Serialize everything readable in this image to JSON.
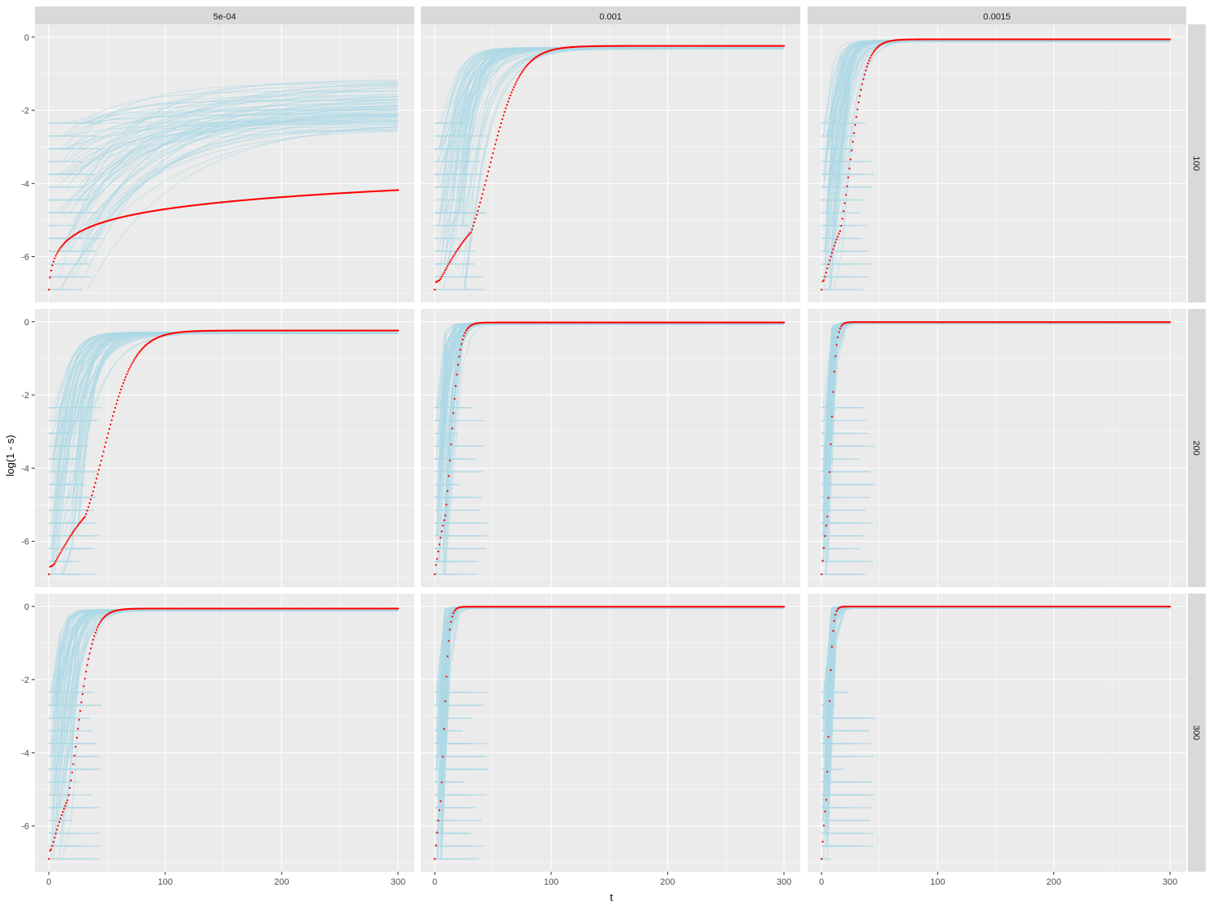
{
  "chart_data": {
    "type": "scatter",
    "facet_layout": "grid",
    "xlabel": "t",
    "ylabel": "log(1 - s)",
    "xlim": [
      -12,
      314
    ],
    "ylim": [
      -7.25,
      0.35
    ],
    "x_ticks": [
      0,
      100,
      200,
      300
    ],
    "x_tick_labels": [
      "0",
      "100",
      "200",
      "300"
    ],
    "y_ticks": [
      0,
      -2,
      -4,
      -6
    ],
    "y_tick_labels": [
      "0",
      "-2",
      "-4",
      "-6"
    ],
    "col_facets": [
      "5e-04",
      "0.001",
      "0.0015"
    ],
    "row_facets": [
      "100",
      "200",
      "300"
    ],
    "grid": true,
    "legend": "none",
    "colors": {
      "panel_bg": "#ebebeb",
      "strip_bg": "#d9d9d9",
      "gridline": "#ffffff",
      "simulated_points": "#add8e6",
      "mean_points": "#ff0000"
    },
    "series": [
      {
        "role": "simulated",
        "color": "#add8e6"
      },
      {
        "role": "mean",
        "color": "#ff0000"
      }
    ],
    "panels": [
      {
        "col": "5e-04",
        "row": "100",
        "mean_start": -6.9,
        "mean_end": -4.18,
        "mean_shape": "log",
        "rate": 0.0,
        "sim_plateau": -1.15,
        "sim_rise_start": 15,
        "sim_rise_end": 150
      },
      {
        "col": "0.001",
        "row": "100",
        "mean_start": -6.9,
        "mean_end": -0.24,
        "mean_shape": "logistic",
        "rate": 0.047,
        "sim_plateau": -0.28,
        "sim_rise_start": 5,
        "sim_rise_end": 90
      },
      {
        "col": "0.0015",
        "row": "100",
        "mean_start": -6.9,
        "mean_end": -0.06,
        "mean_shape": "logistic",
        "rate": 0.09,
        "sim_plateau": -0.08,
        "sim_rise_start": 4,
        "sim_rise_end": 55
      },
      {
        "col": "5e-04",
        "row": "200",
        "mean_start": -6.9,
        "mean_end": -0.24,
        "mean_shape": "logistic",
        "rate": 0.047,
        "sim_plateau": -0.28,
        "sim_rise_start": 5,
        "sim_rise_end": 90
      },
      {
        "col": "0.001",
        "row": "200",
        "mean_start": -6.9,
        "mean_end": -0.02,
        "mean_shape": "logistic",
        "rate": 0.16,
        "sim_plateau": -0.03,
        "sim_rise_start": 3,
        "sim_rise_end": 45
      },
      {
        "col": "0.0015",
        "row": "200",
        "mean_start": -6.9,
        "mean_end": -0.01,
        "mean_shape": "logistic",
        "rate": 0.28,
        "sim_plateau": -0.01,
        "sim_rise_start": 2,
        "sim_rise_end": 30
      },
      {
        "col": "5e-04",
        "row": "300",
        "mean_start": -6.9,
        "mean_end": -0.06,
        "mean_shape": "logistic",
        "rate": 0.09,
        "sim_plateau": -0.08,
        "sim_rise_start": 4,
        "sim_rise_end": 55
      },
      {
        "col": "0.001",
        "row": "300",
        "mean_start": -6.9,
        "mean_end": -0.01,
        "mean_shape": "logistic",
        "rate": 0.28,
        "sim_plateau": -0.01,
        "sim_rise_start": 2,
        "sim_rise_end": 30
      },
      {
        "col": "0.0015",
        "row": "300",
        "mean_start": -6.9,
        "mean_end": -0.005,
        "mean_shape": "logistic",
        "rate": 0.36,
        "sim_plateau": -0.005,
        "sim_rise_start": 2,
        "sim_rise_end": 25
      }
    ]
  }
}
